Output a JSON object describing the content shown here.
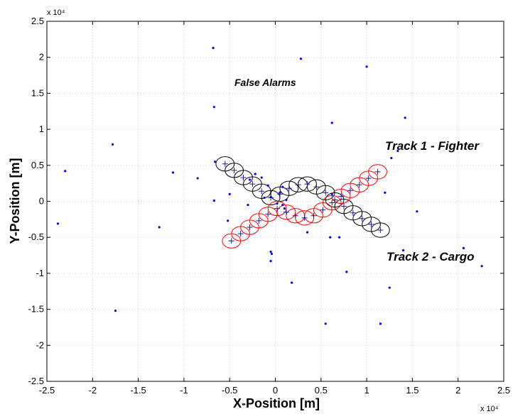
{
  "chart_data": {
    "type": "scatter",
    "xlabel": "X-Position [m]",
    "ylabel": "Y-Position [m]",
    "x_exponent_label": "x 10⁴",
    "y_exponent_label": "x 10⁴",
    "xlim": [
      -2.5,
      2.5
    ],
    "ylim": [
      -2.5,
      2.5
    ],
    "xticks": [
      "-2.5",
      "-2",
      "-1.5",
      "-1",
      "-0.5",
      "0",
      "0.5",
      "1",
      "1.5",
      "2",
      "2.5"
    ],
    "yticks": [
      "2.5",
      "2",
      "1.5",
      "1",
      "0.5",
      "0",
      "-0.5",
      "-1",
      "-1.5",
      "-2",
      "-2.5"
    ],
    "grid": true,
    "annotations": [
      {
        "text": "False Alarms",
        "x": 0.1,
        "y": 1.6
      },
      {
        "text": "Track 1 - Fighter",
        "x": 1.2,
        "y": 0.7
      },
      {
        "text": "Track 2 - Cargo",
        "x": 1.2,
        "y": -0.75
      }
    ],
    "series": [
      {
        "color": "#000000",
        "marker": "circle",
        "x": [
          -0.55,
          -0.45,
          -0.35,
          -0.25,
          -0.15,
          -0.05,
          0.05,
          0.15,
          0.25,
          0.35,
          0.45,
          0.55,
          0.65,
          0.75,
          0.85,
          0.95,
          1.05,
          1.15
        ],
        "y": [
          0.52,
          0.43,
          0.33,
          0.24,
          0.14,
          0.05,
          0.1,
          0.18,
          0.23,
          0.24,
          0.2,
          0.12,
          0.02,
          -0.07,
          -0.16,
          -0.24,
          -0.32,
          -0.4
        ]
      },
      {
        "color": "#ff0000",
        "marker": "circle",
        "x": [
          -0.48,
          -0.38,
          -0.28,
          -0.18,
          -0.08,
          0.02,
          0.12,
          0.22,
          0.32,
          0.42,
          0.52,
          0.62,
          0.72,
          0.82,
          0.92,
          1.02,
          1.12
        ],
        "y": [
          -0.55,
          -0.45,
          -0.36,
          -0.27,
          -0.18,
          -0.1,
          -0.15,
          -0.2,
          -0.23,
          -0.2,
          -0.12,
          -0.02,
          0.07,
          0.15,
          0.23,
          0.32,
          0.41
        ]
      },
      {
        "color": "#0000ff",
        "marker": "dot",
        "x": [
          -0.68,
          0.28,
          -2.3,
          -2.38,
          -1.78,
          -1.75,
          -1.12,
          -1.27,
          -0.67,
          -0.08,
          0.62,
          1.42,
          -0.67,
          -0.15,
          -0.05,
          0.02,
          0.08,
          -0.28,
          -0.22,
          -0.05,
          0.35,
          0.6,
          0.7,
          0.78,
          1.25,
          1.27,
          1.4,
          1.55,
          2.06,
          2.26,
          0.55,
          -0.05,
          -0.04,
          0.18,
          1.15,
          -0.85,
          -0.66,
          -0.52,
          -0.5,
          0.62,
          1.0,
          1.2,
          1.34,
          0.12,
          0.05,
          -0.3,
          -0.12,
          0.1,
          0.08
        ],
        "y": [
          2.13,
          1.98,
          0.42,
          -0.31,
          0.79,
          -1.52,
          0.4,
          -0.36,
          1.31,
          0.22,
          1.09,
          1.16,
          0.01,
          0.33,
          0.06,
          -0.03,
          -0.05,
          0.3,
          0.38,
          -0.7,
          -0.43,
          -0.5,
          -0.5,
          -0.98,
          -1.2,
          0.6,
          -0.68,
          -0.14,
          -0.65,
          -0.9,
          -1.7,
          -0.83,
          -0.73,
          -1.13,
          -1.7,
          0.32,
          0.55,
          -0.27,
          0.1,
          0.1,
          1.87,
          0.12,
          0.7,
          0.02,
          0.12,
          -0.05,
          0.05,
          -0.1,
          0.2
        ]
      }
    ]
  }
}
